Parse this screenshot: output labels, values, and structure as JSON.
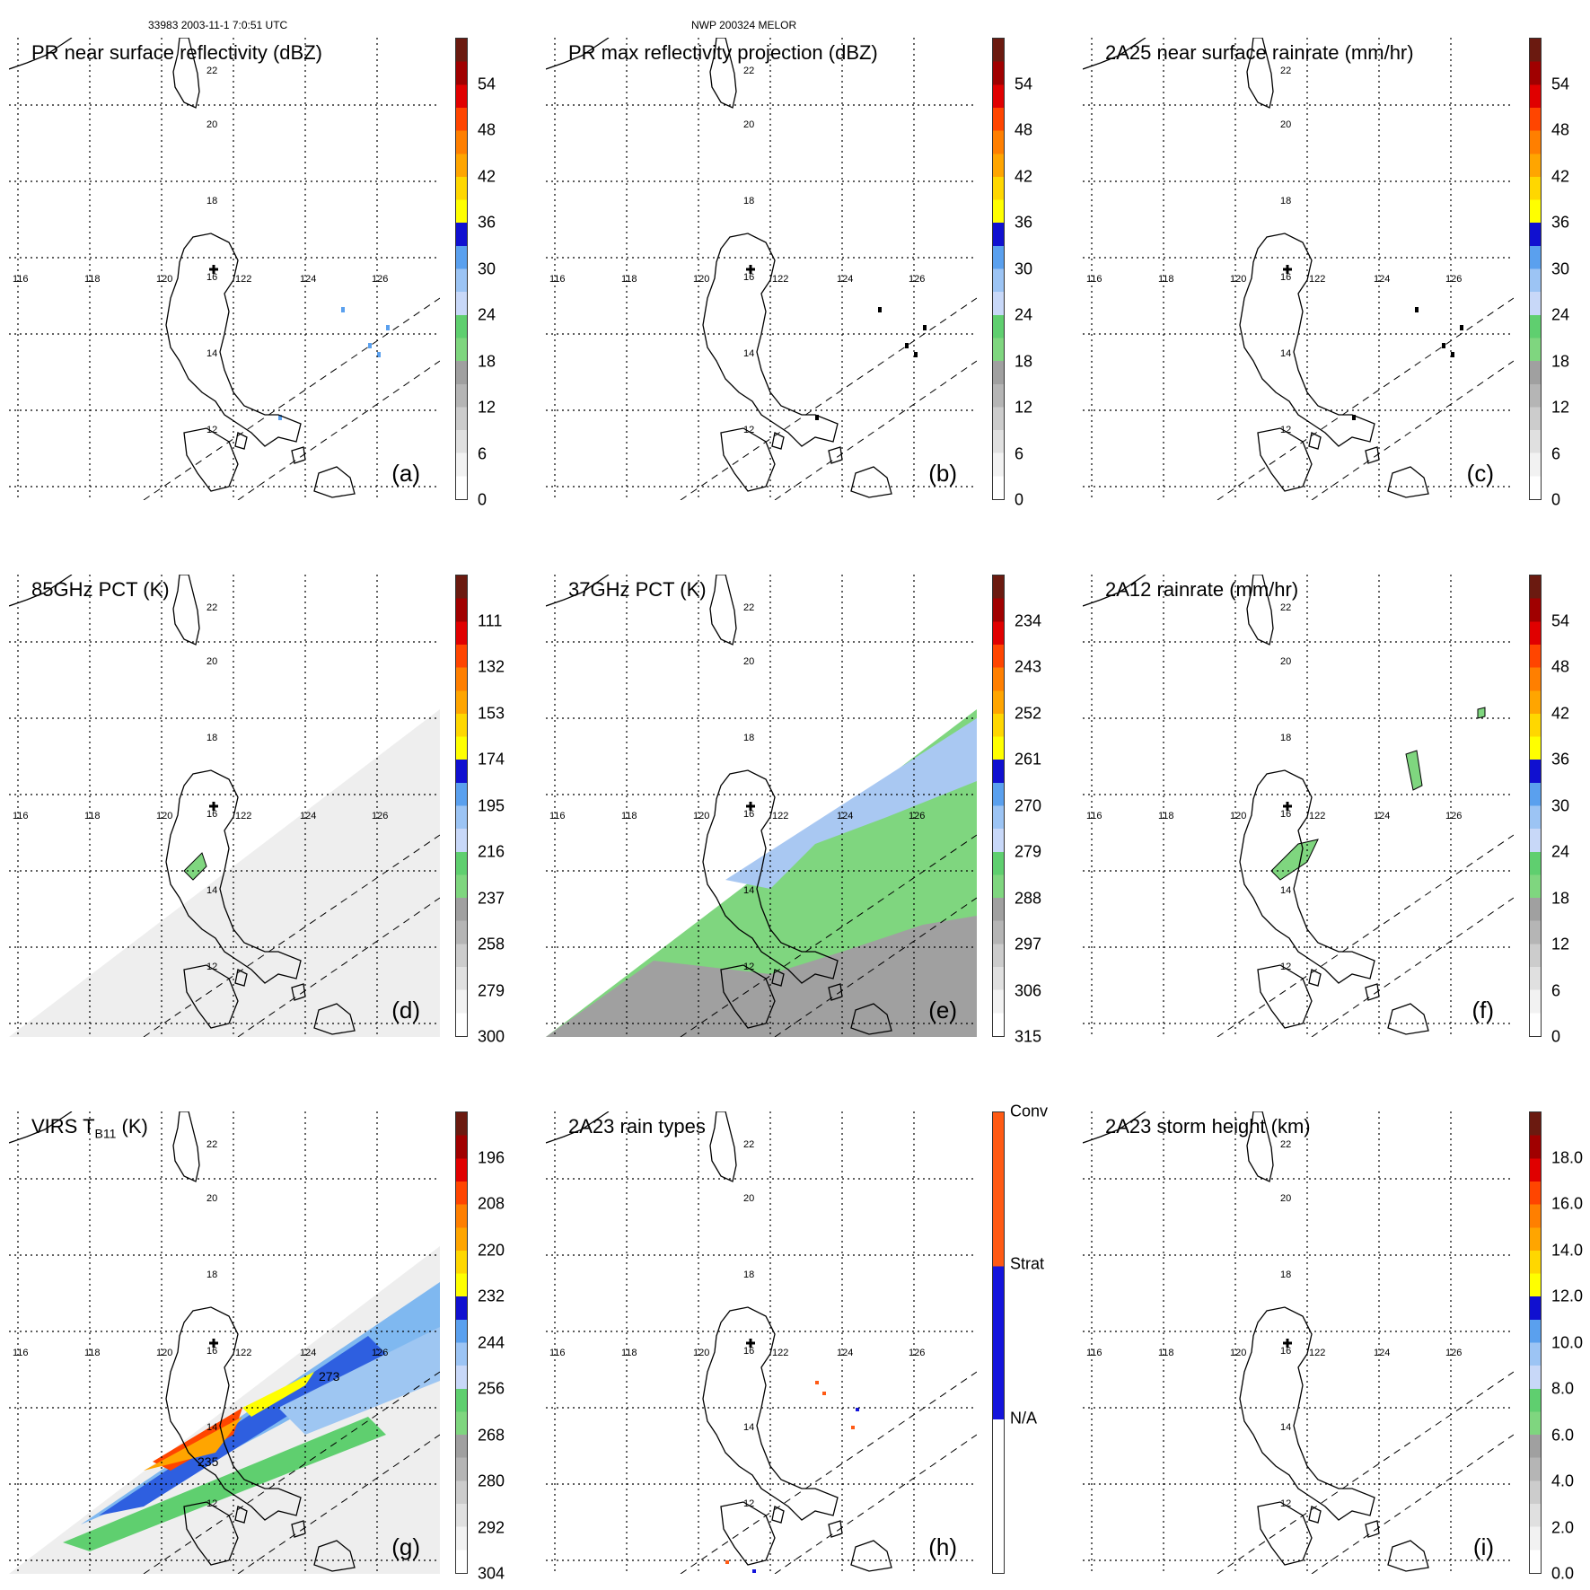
{
  "header": {
    "orbit_time": "33983 2003-11-1 7:0:51 UTC",
    "storm": "NWP 200324 MELOR"
  },
  "map_grid": {
    "lon_labels": [
      "116",
      "118",
      "120",
      "122",
      "124",
      "126"
    ],
    "lat_labels": [
      "22",
      "20",
      "18",
      "16",
      "14",
      "12"
    ]
  },
  "panels": [
    {
      "id": "a",
      "title": "PR near surface reflectivity (dBZ)",
      "label": "(a)",
      "colorbar": {
        "ticks": [
          "54",
          "48",
          "42",
          "36",
          "30",
          "24",
          "18",
          "12",
          "6",
          "0"
        ]
      }
    },
    {
      "id": "b",
      "title": "PR max reflectivity projection (dBZ)",
      "label": "(b)",
      "colorbar": {
        "ticks": [
          "54",
          "48",
          "42",
          "36",
          "30",
          "24",
          "18",
          "12",
          "6",
          "0"
        ]
      }
    },
    {
      "id": "c",
      "title": "2A25 near surface rainrate (mm/hr)",
      "label": "(c)",
      "colorbar": {
        "ticks": [
          "54",
          "48",
          "42",
          "36",
          "30",
          "24",
          "18",
          "12",
          "6",
          "0"
        ]
      }
    },
    {
      "id": "d",
      "title": "85GHz PCT (K)",
      "label": "(d)",
      "colorbar": {
        "ticks": [
          "111",
          "132",
          "153",
          "174",
          "195",
          "216",
          "237",
          "258",
          "279",
          "300"
        ]
      }
    },
    {
      "id": "e",
      "title": "37GHz PCT (K)",
      "label": "(e)",
      "colorbar": {
        "ticks": [
          "234",
          "243",
          "252",
          "261",
          "270",
          "279",
          "288",
          "297",
          "306",
          "315"
        ]
      }
    },
    {
      "id": "f",
      "title": "2A12 rainrate (mm/hr)",
      "label": "(f)",
      "colorbar": {
        "ticks": [
          "54",
          "48",
          "42",
          "36",
          "30",
          "24",
          "18",
          "12",
          "6",
          "0"
        ]
      }
    },
    {
      "id": "g",
      "title": "VIRS T",
      "title_sub": "B11",
      "title_end": " (K)",
      "label": "(g)",
      "contour_labels": [
        "235",
        "273"
      ],
      "colorbar": {
        "ticks": [
          "196",
          "208",
          "220",
          "232",
          "244",
          "256",
          "268",
          "280",
          "292",
          "304"
        ]
      }
    },
    {
      "id": "h",
      "title": "2A23 rain types",
      "label": "(h)",
      "colorbar": {
        "ticks": [
          "Conv",
          "Strat",
          "N/A"
        ]
      }
    },
    {
      "id": "i",
      "title": "2A23 storm height (km)",
      "label": "(i)",
      "colorbar": {
        "ticks": [
          "18.0",
          "16.0",
          "14.0",
          "12.0",
          "10.0",
          "8.0",
          "6.0",
          "4.0",
          "2.0",
          "0.0"
        ]
      }
    }
  ],
  "colors": {
    "scale": [
      "#ffffff",
      "#f0f0f0",
      "#d9d9d9",
      "#bdbdbd",
      "#9e9e9e",
      "#7fd67f",
      "#5fcf6f",
      "#c8d8f8",
      "#9cc4f4",
      "#5aa0ee",
      "#2e6fe0",
      "#1010d0",
      "#ffff00",
      "#ffd700",
      "#ffa500",
      "#ff7f00",
      "#ff4500",
      "#e00000",
      "#a00000",
      "#6b1a10",
      "#4a1008"
    ],
    "rain_types": [
      "#ffffff",
      "#1414dc",
      "#ff5a14"
    ],
    "land": "#000000",
    "swath_gray": "#eeeeee"
  }
}
